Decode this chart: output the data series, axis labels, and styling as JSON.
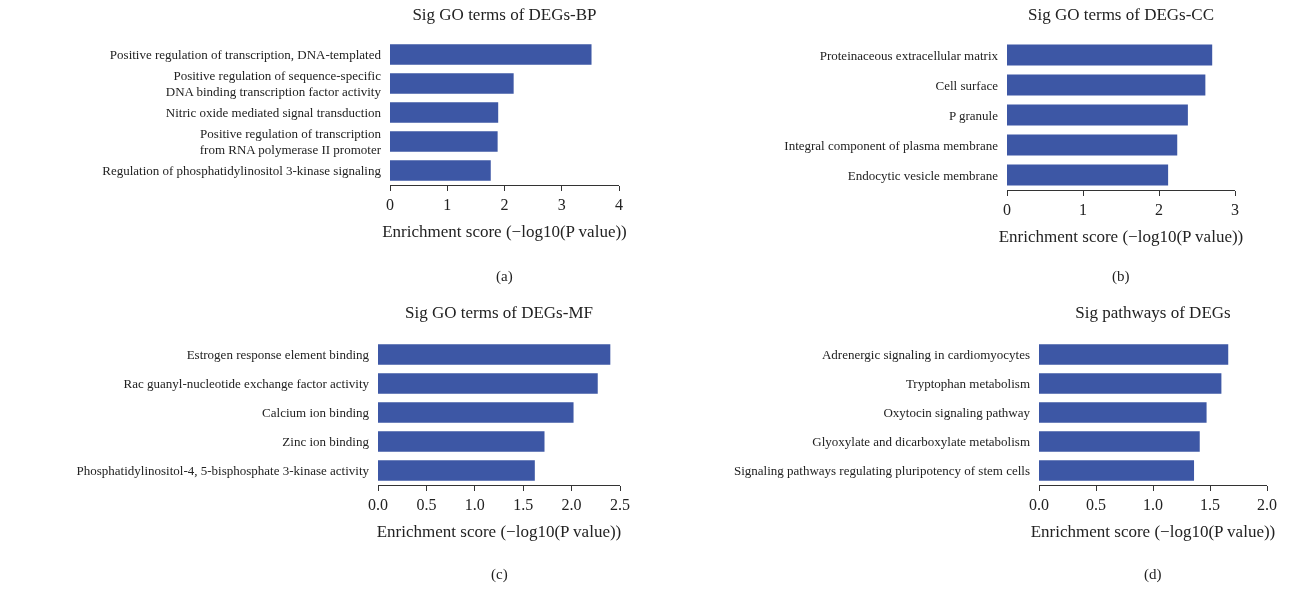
{
  "chart_data": [
    {
      "type": "bar",
      "orientation": "horizontal",
      "title": "Sig GO terms of DEGs-BP",
      "xlabel": "Enrichment score (−log10(P value))",
      "categories": [
        "Positive regulation of transcription, DNA-templated",
        "Positive regulation of sequence-specific\nDNA binding transcription factor activity",
        "Nitric oxide mediated signal transduction",
        "Positive regulation of transcription\nfrom RNA polymerase II promoter",
        "Regulation of phosphatidylinositol 3-kinase signaling"
      ],
      "values": [
        3.52,
        2.16,
        1.89,
        1.88,
        1.76
      ],
      "color": "#3d57a5",
      "xlim": [
        0,
        4
      ],
      "xticks": [
        0,
        1,
        2,
        3,
        4
      ],
      "annotations": [
        "(a)"
      ]
    },
    {
      "type": "bar",
      "orientation": "horizontal",
      "title": "Sig GO terms of DEGs-CC",
      "xlabel": "Enrichment score (−log10(P value))",
      "categories": [
        "Proteinaceous extracellular matrix",
        "Cell surface",
        "P granule",
        "Integral component of plasma membrane",
        "Endocytic vesicle membrane"
      ],
      "values": [
        2.7,
        2.61,
        2.38,
        2.24,
        2.12
      ],
      "color": "#3d57a5",
      "xlim": [
        0,
        3
      ],
      "xticks": [
        0,
        1,
        2,
        3
      ],
      "annotations": [
        "(b)"
      ]
    },
    {
      "type": "bar",
      "orientation": "horizontal",
      "title": "Sig GO terms of DEGs-MF",
      "xlabel": "Enrichment score (−log10(P value))",
      "categories": [
        "Estrogen response element binding",
        "Rac guanyl-nucleotide exchange factor activity",
        "Calcium ion binding",
        "Zinc ion binding",
        "Phosphatidylinositol-4, 5-bisphosphate 3-kinase activity"
      ],
      "values": [
        2.4,
        2.27,
        2.02,
        1.72,
        1.62
      ],
      "color": "#3d57a5",
      "xlim": [
        0,
        2.5
      ],
      "xticks": [
        {
          "value": 0,
          "label": "0.0"
        },
        {
          "value": 0.5,
          "label": "0.5"
        },
        {
          "value": 1,
          "label": "1.0"
        },
        {
          "value": 1.5,
          "label": "1.5"
        },
        {
          "value": 2,
          "label": "2.0"
        },
        {
          "value": 2.5,
          "label": "2.5"
        }
      ],
      "annotations": [
        "(c)"
      ]
    },
    {
      "type": "bar",
      "orientation": "horizontal",
      "title": "Sig pathways of DEGs",
      "xlabel": "Enrichment score (−log10(P value))",
      "categories": [
        "Adrenergic signaling in cardiomyocytes",
        "Tryptophan metabolism",
        "Oxytocin signaling pathway",
        "Glyoxylate and dicarboxylate metabolism",
        "Signaling pathways regulating pluripotency of stem cells"
      ],
      "values": [
        1.66,
        1.6,
        1.47,
        1.41,
        1.36
      ],
      "color": "#3d57a5",
      "xlim": [
        0,
        2
      ],
      "xticks": [
        {
          "value": 0,
          "label": "0.0"
        },
        {
          "value": 0.5,
          "label": "0.5"
        },
        {
          "value": 1,
          "label": "1.0"
        },
        {
          "value": 1.5,
          "label": "1.5"
        },
        {
          "value": 2,
          "label": "2.0"
        }
      ],
      "annotations": [
        "(d)"
      ]
    }
  ]
}
